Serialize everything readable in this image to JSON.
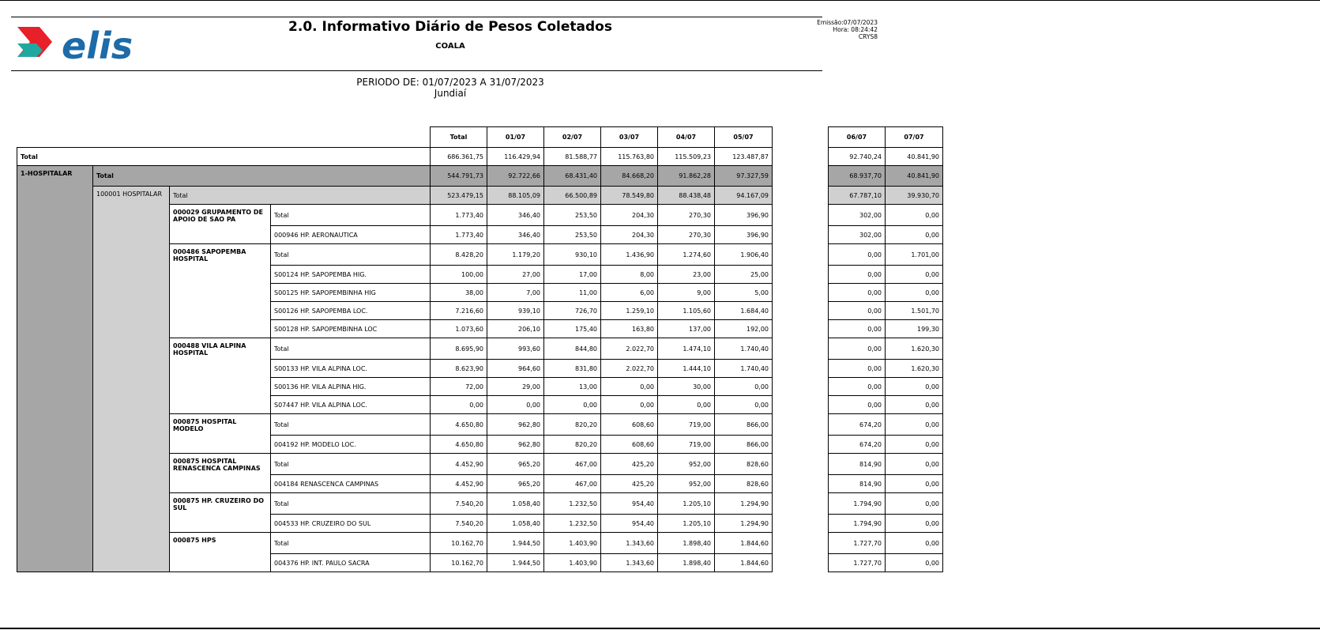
{
  "header": {
    "logo_text": "elis",
    "title": "2.0. Informativo Diário de Pesos Coletados",
    "subtitle": "COALA",
    "emission": "Emissão:07/07/2023",
    "hour": "Hora: 08:24:42",
    "user": "CRYS8",
    "period": "PERIODO DE: 01/07/2023 A 31/07/2023",
    "city": "Jundiaí"
  },
  "columns": [
    "Total",
    "01/07",
    "02/07",
    "03/07",
    "04/07",
    "05/07"
  ],
  "columns_right": [
    "06/07",
    "07/07"
  ],
  "grand_total": {
    "label": "Total",
    "values": [
      "686.361,75",
      "116.429,94",
      "81.588,77",
      "115.763,80",
      "115.509,23",
      "123.487,87"
    ],
    "right": [
      "92.740,24",
      "40.841,90"
    ]
  },
  "segment": {
    "label": "1-HOSPITALAR",
    "total_label": "Total",
    "values": [
      "544.791,73",
      "92.722,66",
      "68.431,40",
      "84.668,20",
      "91.862,28",
      "97.327,59"
    ],
    "right": [
      "68.937,70",
      "40.841,90"
    ]
  },
  "group": {
    "label": "100001 HOSPITALAR",
    "total_label": "Total",
    "values": [
      "523.479,15",
      "88.105,09",
      "66.500,89",
      "78.549,80",
      "88.438,48",
      "94.167,09"
    ],
    "right": [
      "67.787,10",
      "39.930,70"
    ]
  },
  "clients": [
    {
      "label": "000029  GRUPAMENTO DE APOIO DE SAO PA",
      "rows": [
        {
          "label": "Total",
          "values": [
            "1.773,40",
            "346,40",
            "253,50",
            "204,30",
            "270,30",
            "396,90"
          ],
          "right": [
            "302,00",
            "0,00"
          ]
        },
        {
          "label": "000946  HP. AERONAUTICA",
          "values": [
            "1.773,40",
            "346,40",
            "253,50",
            "204,30",
            "270,30",
            "396,90"
          ],
          "right": [
            "302,00",
            "0,00"
          ]
        }
      ]
    },
    {
      "label": "000486  SAPOPEMBA HOSPITAL",
      "rows": [
        {
          "label": "Total",
          "values": [
            "8.428,20",
            "1.179,20",
            "930,10",
            "1.436,90",
            "1.274,60",
            "1.906,40"
          ],
          "right": [
            "0,00",
            "1.701,00"
          ]
        },
        {
          "label": "S00124  HP. SAPOPEMBA HIG.",
          "values": [
            "100,00",
            "27,00",
            "17,00",
            "8,00",
            "23,00",
            "25,00"
          ],
          "right": [
            "0,00",
            "0,00"
          ]
        },
        {
          "label": "S00125  HP. SAPOPEMBINHA HIG",
          "values": [
            "38,00",
            "7,00",
            "11,00",
            "6,00",
            "9,00",
            "5,00"
          ],
          "right": [
            "0,00",
            "0,00"
          ]
        },
        {
          "label": "S00126  HP. SAPOPEMBA LOC.",
          "values": [
            "7.216,60",
            "939,10",
            "726,70",
            "1.259,10",
            "1.105,60",
            "1.684,40"
          ],
          "right": [
            "0,00",
            "1.501,70"
          ]
        },
        {
          "label": "S00128  HP. SAPOPEMBINHA LOC",
          "values": [
            "1.073,60",
            "206,10",
            "175,40",
            "163,80",
            "137,00",
            "192,00"
          ],
          "right": [
            "0,00",
            "199,30"
          ]
        }
      ]
    },
    {
      "label": "000488  VILA ALPINA HOSPITAL",
      "rows": [
        {
          "label": "Total",
          "values": [
            "8.695,90",
            "993,60",
            "844,80",
            "2.022,70",
            "1.474,10",
            "1.740,40"
          ],
          "right": [
            "0,00",
            "1.620,30"
          ]
        },
        {
          "label": "S00133  HP. VILA ALPINA LOC.",
          "values": [
            "8.623,90",
            "964,60",
            "831,80",
            "2.022,70",
            "1.444,10",
            "1.740,40"
          ],
          "right": [
            "0,00",
            "1.620,30"
          ]
        },
        {
          "label": "S00136  HP. VILA ALPINA HIG.",
          "values": [
            "72,00",
            "29,00",
            "13,00",
            "0,00",
            "30,00",
            "0,00"
          ],
          "right": [
            "0,00",
            "0,00"
          ]
        },
        {
          "label": "S07447  HP. VILA ALPINA LOC.",
          "values": [
            "0,00",
            "0,00",
            "0,00",
            "0,00",
            "0,00",
            "0,00"
          ],
          "right": [
            "0,00",
            "0,00"
          ]
        }
      ]
    },
    {
      "label": "000875  HOSPITAL MODELO",
      "rows": [
        {
          "label": "Total",
          "values": [
            "4.650,80",
            "962,80",
            "820,20",
            "608,60",
            "719,00",
            "866,00"
          ],
          "right": [
            "674,20",
            "0,00"
          ]
        },
        {
          "label": "004192  HP. MODELO LOC.",
          "values": [
            "4.650,80",
            "962,80",
            "820,20",
            "608,60",
            "719,00",
            "866,00"
          ],
          "right": [
            "674,20",
            "0,00"
          ]
        }
      ]
    },
    {
      "label": "000875  HOSPITAL RENASCENCA CAMPINAS",
      "rows": [
        {
          "label": "Total",
          "values": [
            "4.452,90",
            "965,20",
            "467,00",
            "425,20",
            "952,00",
            "828,60"
          ],
          "right": [
            "814,90",
            "0,00"
          ]
        },
        {
          "label": "004184  RENASCENCA CAMPINAS",
          "values": [
            "4.452,90",
            "965,20",
            "467,00",
            "425,20",
            "952,00",
            "828,60"
          ],
          "right": [
            "814,90",
            "0,00"
          ]
        }
      ]
    },
    {
      "label": "000875  HP. CRUZEIRO DO SUL",
      "rows": [
        {
          "label": "Total",
          "values": [
            "7.540,20",
            "1.058,40",
            "1.232,50",
            "954,40",
            "1.205,10",
            "1.294,90"
          ],
          "right": [
            "1.794,90",
            "0,00"
          ]
        },
        {
          "label": "004533  HP. CRUZEIRO DO SUL",
          "values": [
            "7.540,20",
            "1.058,40",
            "1.232,50",
            "954,40",
            "1.205,10",
            "1.294,90"
          ],
          "right": [
            "1.794,90",
            "0,00"
          ]
        }
      ]
    },
    {
      "label": "000875  HPS",
      "rows": [
        {
          "label": "Total",
          "values": [
            "10.162,70",
            "1.944,50",
            "1.403,90",
            "1.343,60",
            "1.898,40",
            "1.844,60"
          ],
          "right": [
            "1.727,70",
            "0,00"
          ]
        },
        {
          "label": "004376  HP. INT. PAULO SACRA",
          "values": [
            "10.162,70",
            "1.944,50",
            "1.403,90",
            "1.343,60",
            "1.898,40",
            "1.844,60"
          ],
          "right": [
            "1.727,70",
            "0,00"
          ]
        }
      ]
    }
  ]
}
